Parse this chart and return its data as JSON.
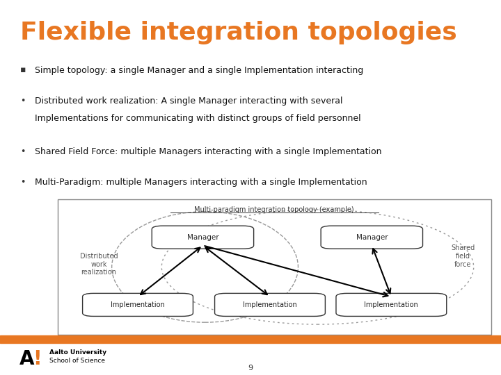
{
  "title": "Flexible integration topologies",
  "title_color": "#E87722",
  "title_fontsize": 26,
  "background_color": "#FFFFFF",
  "bullets": [
    {
      "symbol": "▪",
      "text": "Simple topology: a single Manager and a single Implementation interacting",
      "bold": false
    },
    {
      "symbol": "•",
      "text": "Distributed work realization: A single Manager interacting with several\nImplementations for communicating with distinct groups of field personnel",
      "bold": false
    },
    {
      "symbol": "•",
      "text": "Shared Field Force: multiple Managers interacting with a single Implementation",
      "bold": false
    },
    {
      "symbol": "•",
      "text": "Multi-Paradigm: multiple Managers interacting with a single Implementation",
      "bold": false
    }
  ],
  "diagram_title": "Multi-paradigm integration topology (example)",
  "footer_bar_color": "#E87722",
  "page_number": "9",
  "aalto_text_1": "Aalto University",
  "aalto_text_2": "School of Science",
  "label_distributed": "Distributed\nwork\nrealization",
  "label_shared": "Shared\nfield\nforce"
}
